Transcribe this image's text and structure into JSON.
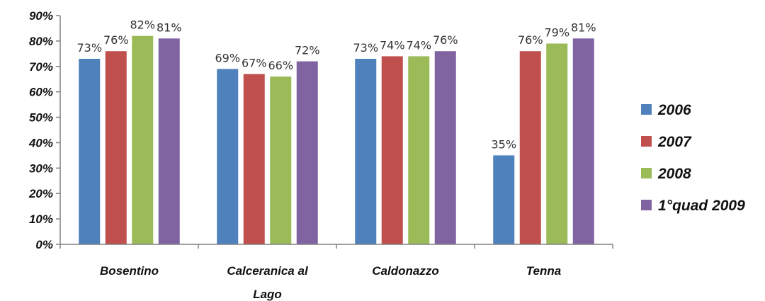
{
  "chart_data": {
    "type": "bar",
    "categories": [
      "Bosentino",
      "Calceranica al Lago",
      "Caldonazzo",
      "Tenna"
    ],
    "series": [
      {
        "name": "2006",
        "values": [
          73,
          69,
          73,
          35
        ],
        "color": "#4F81BD"
      },
      {
        "name": "2007",
        "values": [
          76,
          67,
          74,
          76
        ],
        "color": "#C0504D"
      },
      {
        "name": "2008",
        "values": [
          82,
          66,
          74,
          79
        ],
        "color": "#9BBB59"
      },
      {
        "name": "1°quad 2009",
        "values": [
          81,
          72,
          76,
          81
        ],
        "color": "#8064A2"
      }
    ],
    "ylim": [
      0,
      90
    ],
    "yticks": [
      "0%",
      "10%",
      "20%",
      "30%",
      "40%",
      "50%",
      "60%",
      "70%",
      "80%",
      "90%"
    ],
    "value_suffix": "%",
    "legend_position": "right",
    "grid": false
  }
}
